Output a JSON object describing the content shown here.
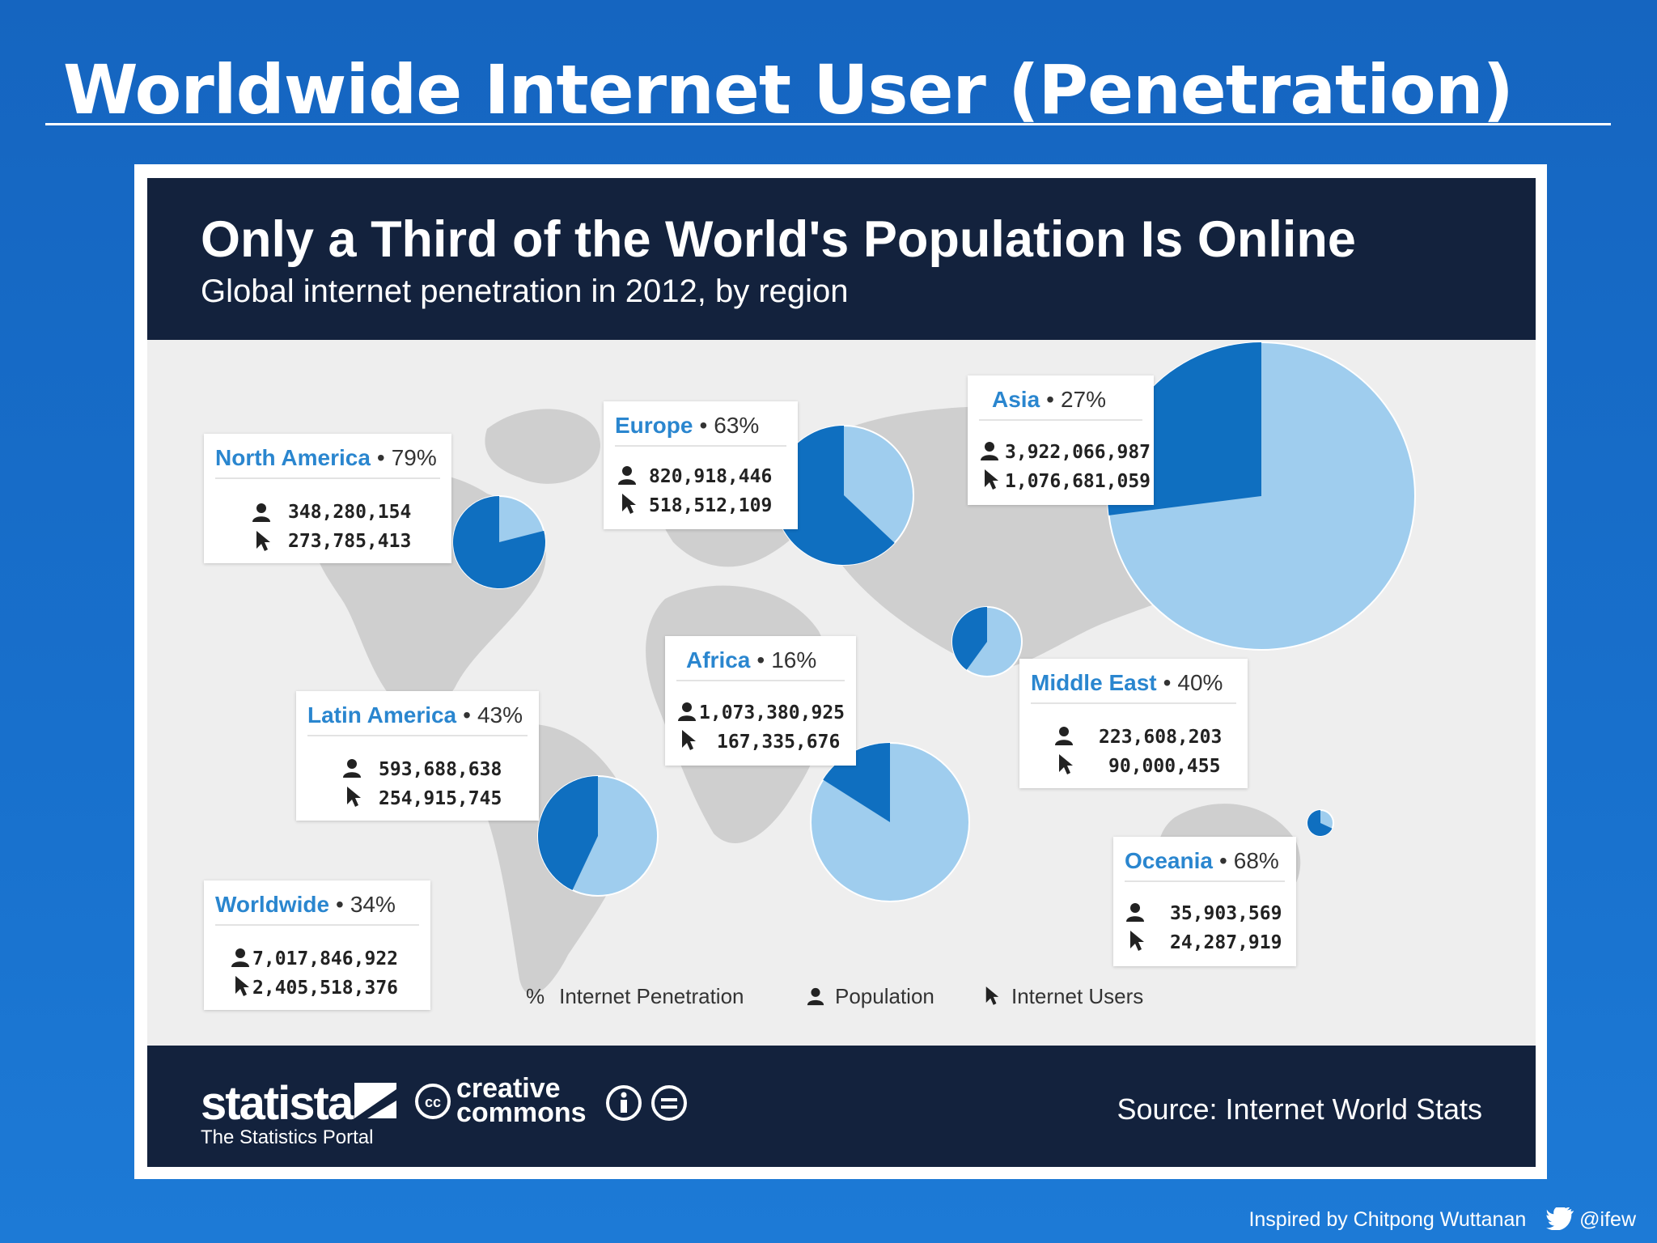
{
  "slide": {
    "title": "Worldwide Internet User (Penetration)",
    "credit": "Inspired by Chitpong Wuttanan",
    "handle": "@ifew"
  },
  "colors": {
    "users": "#0f6fc0",
    "population": "#9fcdee",
    "header": "#13223d",
    "region_text": "#2a86cf"
  },
  "chart_data": {
    "type": "pie",
    "title": "Only a Third of the World's Population Is Online",
    "subtitle": "Global internet penetration in 2012, by region",
    "series_legend": [
      {
        "symbol": "%",
        "label": "Internet Penetration"
      },
      {
        "symbol": "person-icon",
        "label": "Population"
      },
      {
        "symbol": "cursor-icon",
        "label": "Internet Users"
      }
    ],
    "regions": [
      {
        "name": "North America",
        "penetration": "79%",
        "penetration_value": 79,
        "population": "348,280,154",
        "users": "273,785,413"
      },
      {
        "name": "Europe",
        "penetration": "63%",
        "penetration_value": 63,
        "population": "820,918,446",
        "users": "518,512,109"
      },
      {
        "name": "Asia",
        "penetration": "27%",
        "penetration_value": 27,
        "population": "3,922,066,987",
        "users": "1,076,681,059"
      },
      {
        "name": "Latin America",
        "penetration": "43%",
        "penetration_value": 43,
        "population": "593,688,638",
        "users": "254,915,745"
      },
      {
        "name": "Africa",
        "penetration": "16%",
        "penetration_value": 16,
        "population": "1,073,380,925",
        "users": "167,335,676"
      },
      {
        "name": "Middle East",
        "penetration": "40%",
        "penetration_value": 40,
        "population": "223,608,203",
        "users": "90,000,455"
      },
      {
        "name": "Oceania",
        "penetration": "68%",
        "penetration_value": 68,
        "population": "35,903,569",
        "users": "24,287,919"
      }
    ],
    "worldwide": {
      "name": "Worldwide",
      "penetration": "34%",
      "penetration_value": 34,
      "population": "7,017,846,922",
      "users": "2,405,518,376"
    },
    "source": "Source: Internet World Stats"
  },
  "footer": {
    "brand": "statista",
    "brand_sub": "The Statistics Portal",
    "license_line1": "creative",
    "license_line2": "commons",
    "source": "Source: Internet World Stats"
  }
}
